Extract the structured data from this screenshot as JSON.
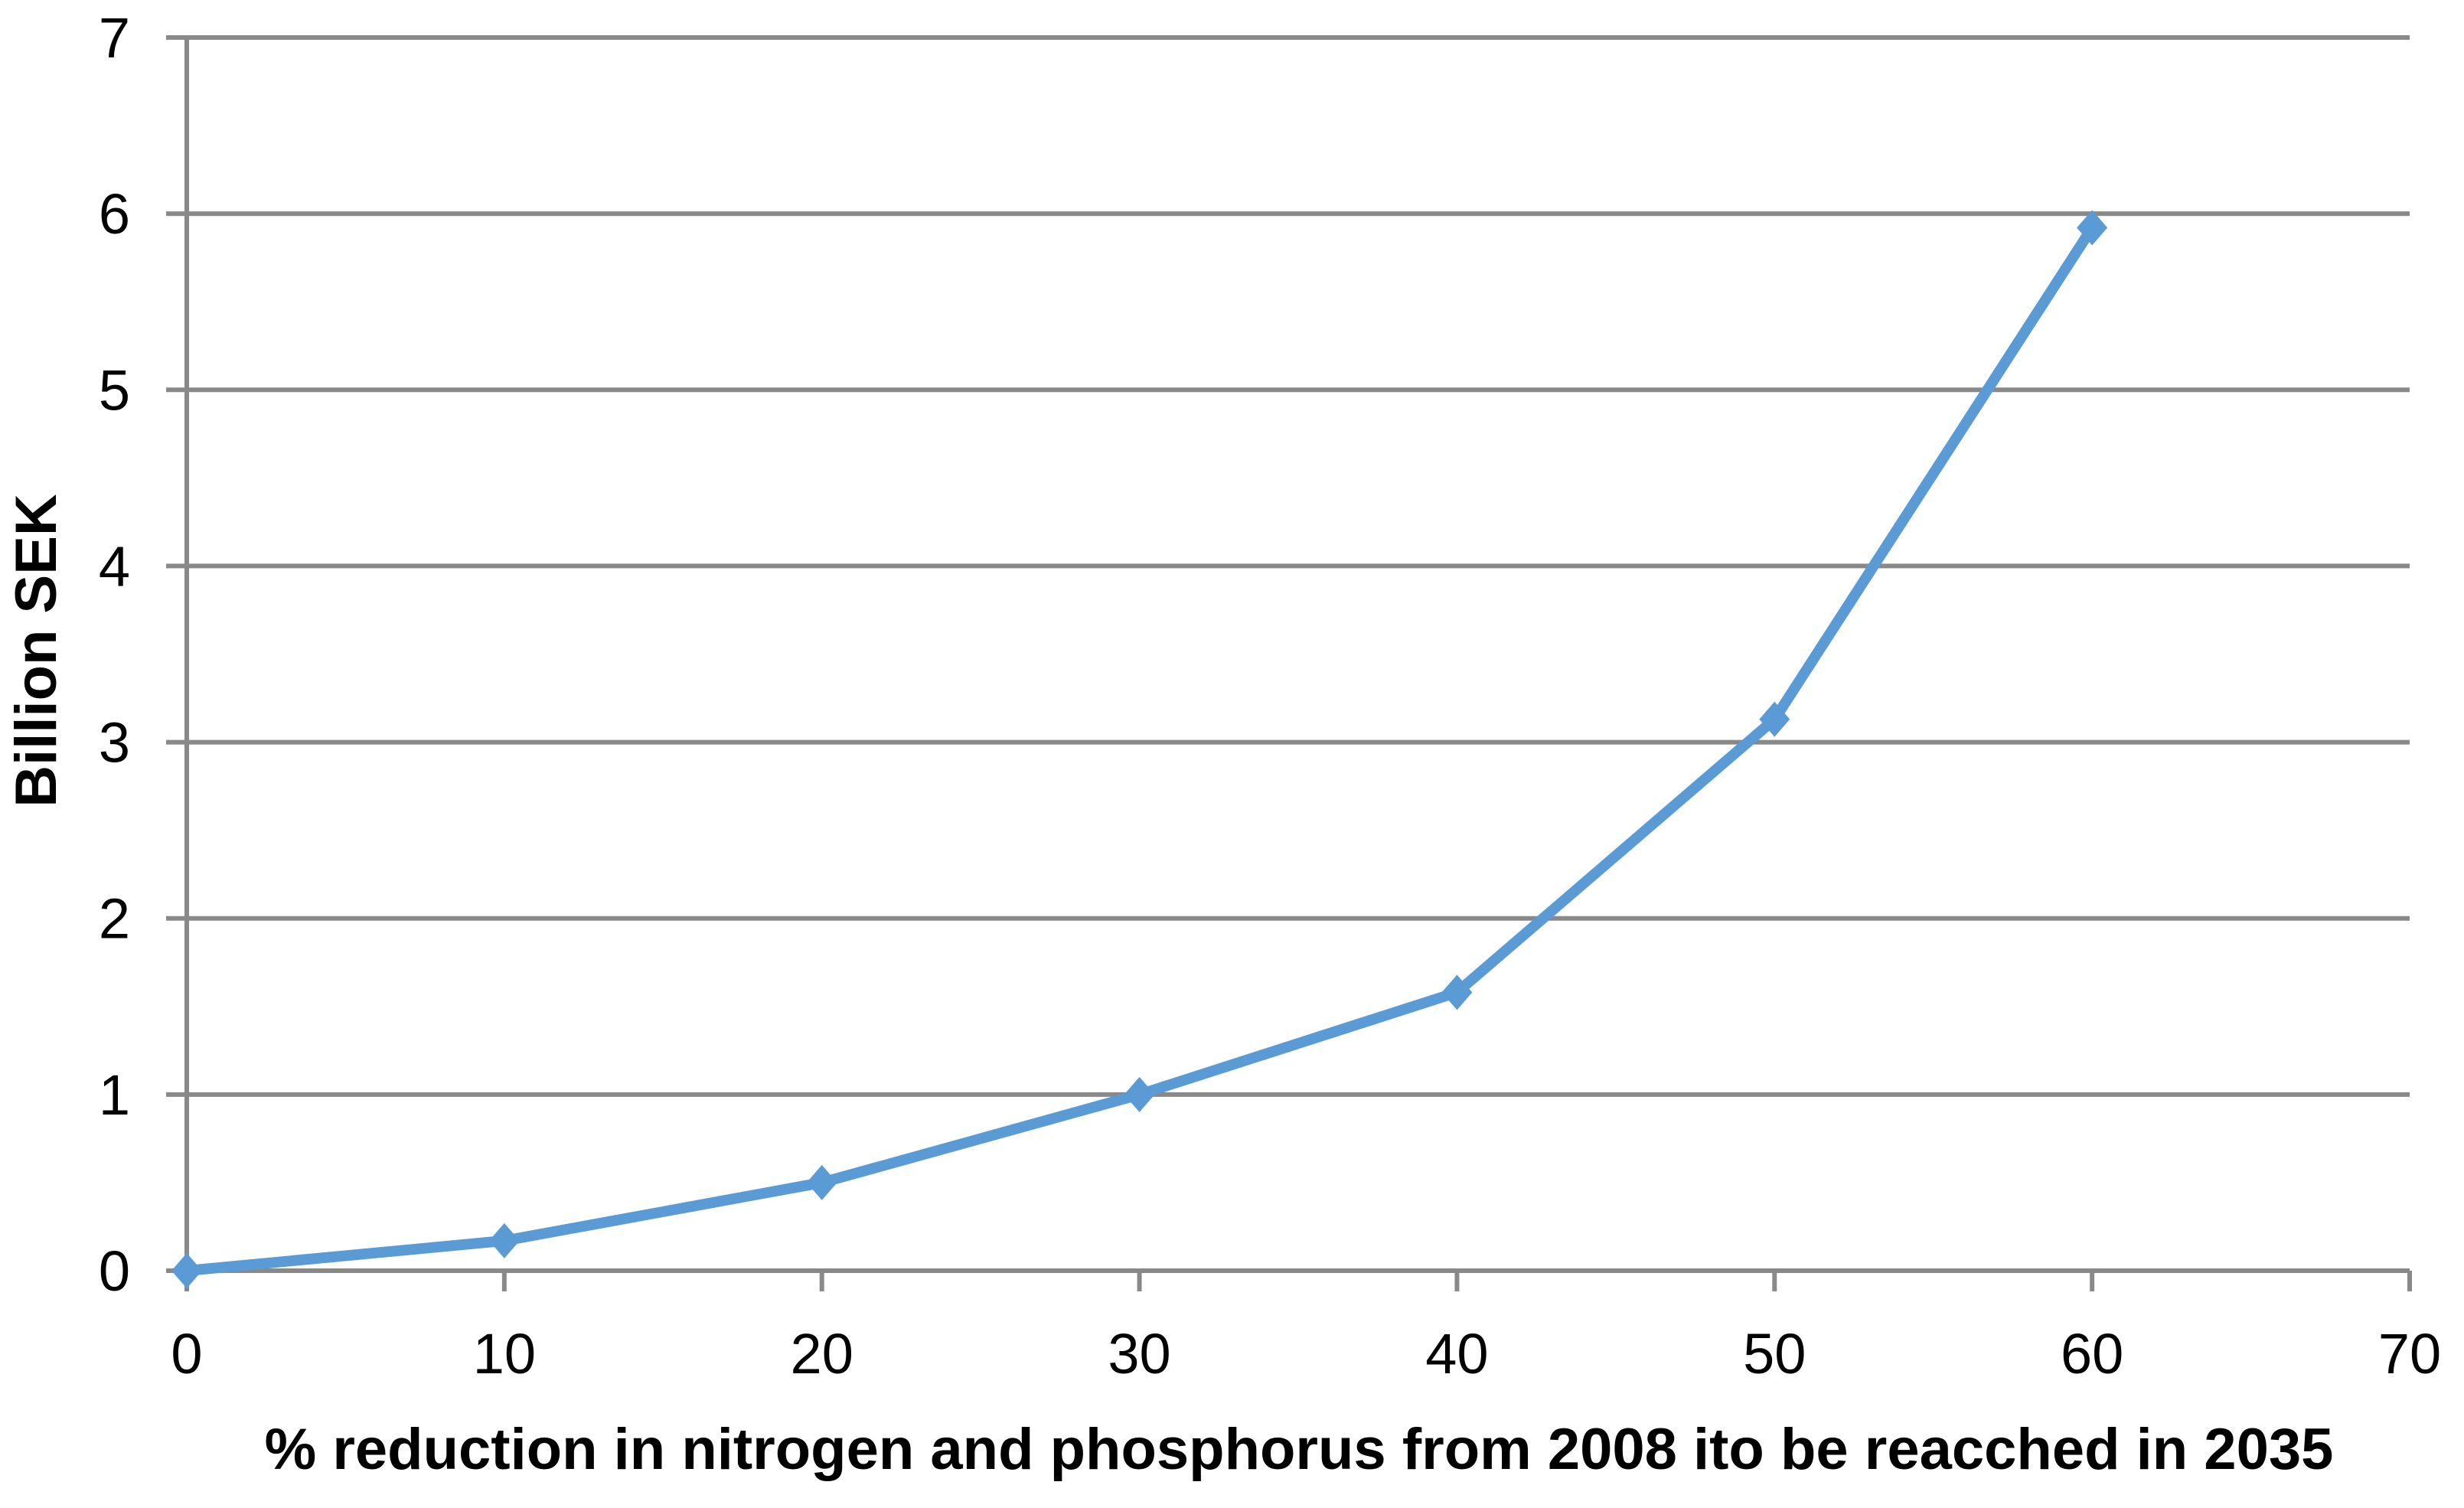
{
  "chart_data": {
    "type": "line",
    "title": "",
    "xlabel": "% reduction in nitrogen and phosphorus from 2008 ito be reacched in 2035",
    "ylabel": "Billion SEK",
    "x": [
      0,
      10,
      20,
      30,
      40,
      50,
      60
    ],
    "values": [
      0,
      0.17,
      0.5,
      1.0,
      1.58,
      3.13,
      5.92
    ],
    "xlim": [
      0,
      70
    ],
    "ylim": [
      0,
      7
    ],
    "x_ticks": [
      0,
      10,
      20,
      30,
      40,
      50,
      60,
      70
    ],
    "y_ticks": [
      0,
      1,
      2,
      3,
      4,
      5,
      6,
      7
    ],
    "grid": true,
    "legend": "none",
    "marker": "diamond",
    "colors": {
      "series": "#5B9BD5",
      "grid": "#898989",
      "axis": "#898989",
      "text": "#000000",
      "background": "#FFFFFF"
    }
  }
}
